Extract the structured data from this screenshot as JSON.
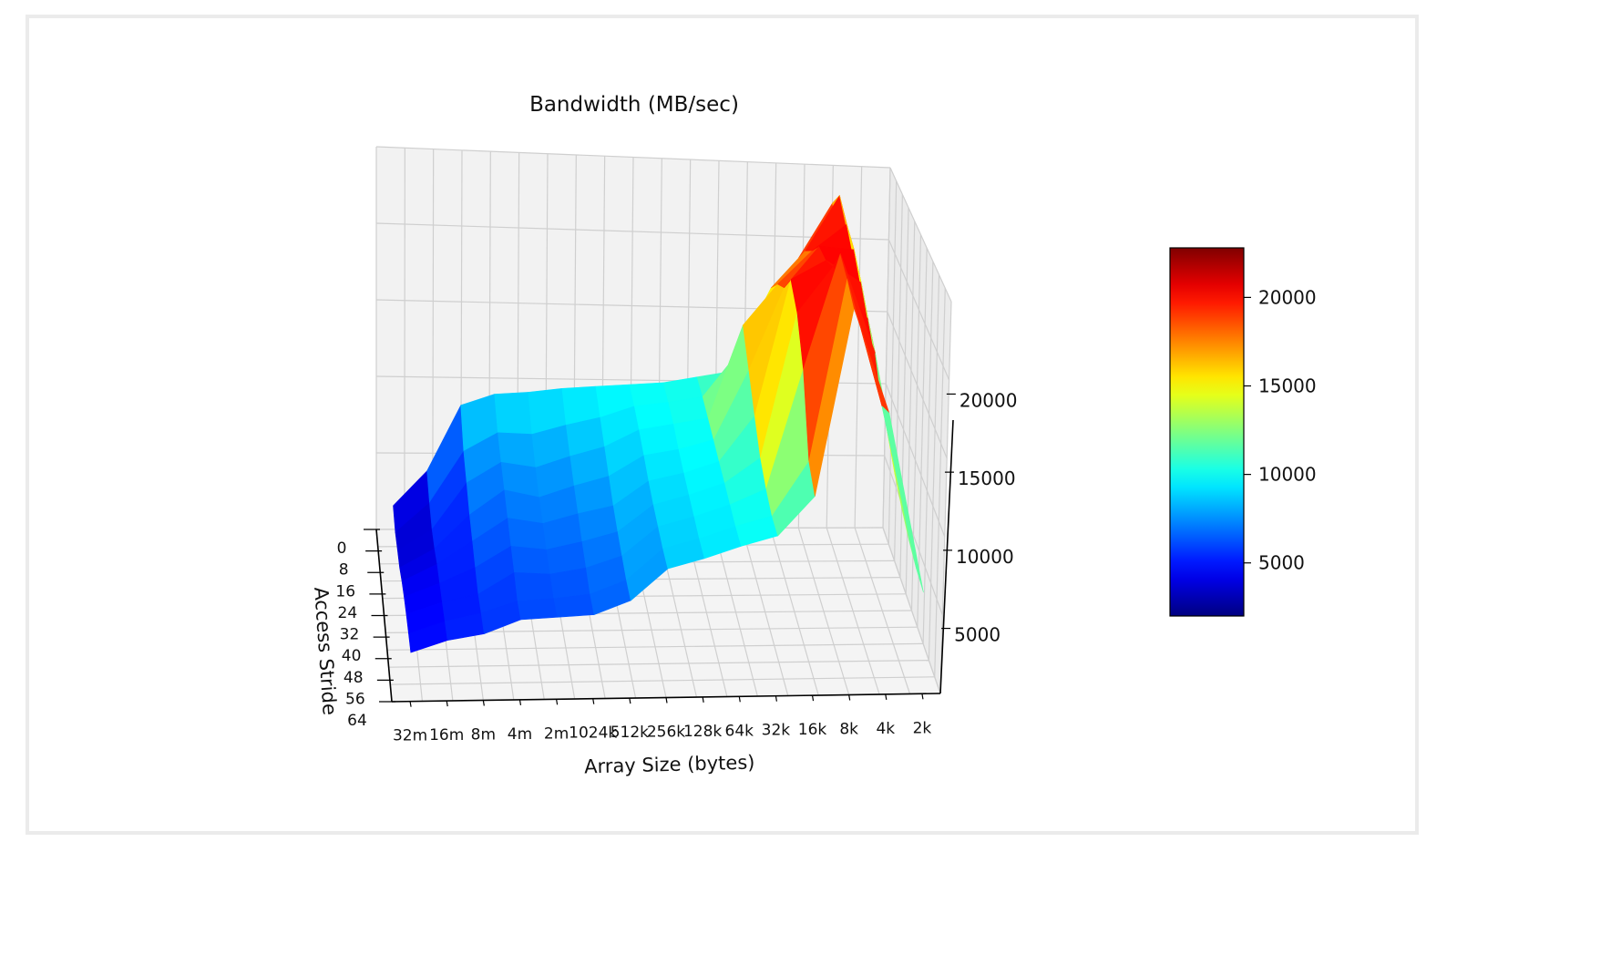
{
  "chart_data": {
    "type": "surface3d",
    "title": "Bandwidth (MB/sec)",
    "xlabel": "Array Size (bytes)",
    "ylabel": "Access Stride",
    "zlabel": "",
    "x_categories": [
      "32m",
      "16m",
      "8m",
      "4m",
      "2m",
      "1024k",
      "512k",
      "256k",
      "128k",
      "64k",
      "32k",
      "16k",
      "8k",
      "4k",
      "2k"
    ],
    "y_ticks": [
      0,
      8,
      16,
      24,
      32,
      40,
      48,
      56,
      64
    ],
    "z_ticks": [
      5000,
      10000,
      15000,
      20000
    ],
    "zlim": [
      2000,
      23000
    ],
    "grid": true,
    "colormap": "jet",
    "colorbar": {
      "ticks": [
        5000,
        10000,
        15000,
        20000
      ],
      "range": [
        2000,
        22800
      ]
    },
    "series": [
      {
        "stride": 64,
        "values": [
          4500,
          5100,
          5400,
          6100,
          6200,
          6300,
          7000,
          8600,
          9100,
          9700,
          10200,
          12200,
          21800,
          16400,
          7200
        ]
      },
      {
        "stride": 56,
        "values": [
          4400,
          5000,
          5400,
          6000,
          6100,
          6300,
          7000,
          8600,
          9100,
          9700,
          10200,
          13000,
          22400,
          15800,
          7400
        ]
      },
      {
        "stride": 48,
        "values": [
          4300,
          4900,
          5300,
          6400,
          6300,
          6600,
          7200,
          8700,
          9200,
          9800,
          10600,
          16800,
          22800,
          17600,
          7800
        ]
      },
      {
        "stride": 40,
        "values": [
          4100,
          4800,
          5600,
          6700,
          6500,
          6900,
          7400,
          8800,
          9300,
          9900,
          11200,
          18800,
          21200,
          18400,
          8400
        ]
      },
      {
        "stride": 32,
        "values": [
          3800,
          4700,
          5900,
          7100,
          6800,
          7300,
          7700,
          9000,
          9400,
          10000,
          12400,
          19600,
          20600,
          19400,
          9200
        ]
      },
      {
        "stride": 24,
        "values": [
          3400,
          4400,
          6200,
          7500,
          7100,
          7700,
          8200,
          9300,
          9600,
          10100,
          13800,
          18200,
          20400,
          20200,
          10400
        ]
      },
      {
        "stride": 16,
        "values": [
          3200,
          4300,
          6800,
          7900,
          7600,
          8200,
          8700,
          9600,
          9900,
          10200,
          15200,
          17400,
          19200,
          20600,
          11400
        ]
      },
      {
        "stride": 8,
        "values": [
          3000,
          4600,
          7400,
          8400,
          8300,
          8800,
          9200,
          9800,
          10000,
          10300,
          12600,
          16200,
          18200,
          21200,
          12600
        ]
      },
      {
        "stride": 0,
        "values": [
          3300,
          5200,
          8800,
          9400,
          9500,
          9700,
          9800,
          9900,
          10000,
          10300,
          10600,
          13400,
          16800,
          19800,
          12800
        ]
      }
    ]
  }
}
